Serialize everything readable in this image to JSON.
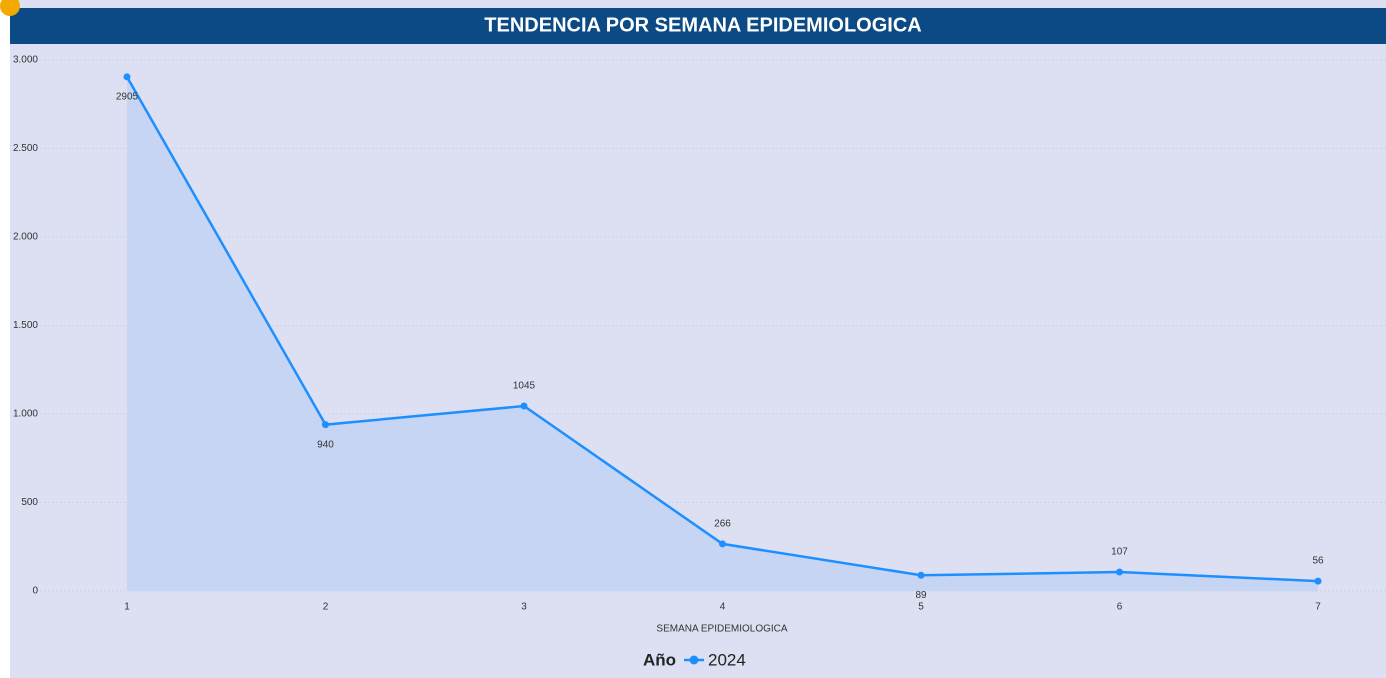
{
  "chart_data": {
    "type": "line",
    "title": "TENDENCIA POR SEMANA EPIDEMIOLOGICA",
    "x_label": "SEMANA EPIDEMIOLOGICA",
    "legend_title": "Año",
    "categories": [
      "1",
      "2",
      "3",
      "4",
      "5",
      "6",
      "7"
    ],
    "series": [
      {
        "name": "2024",
        "color": "#1e8fff",
        "values": [
          2905,
          940,
          1045,
          266,
          89,
          107,
          56
        ]
      }
    ],
    "area_color": "#c6d5f3",
    "ylim": [
      0,
      3000
    ],
    "yticks": [
      0,
      500,
      {
        "value": 1000,
        "label": "1.000"
      },
      {
        "value": 1500,
        "label": "1.500"
      },
      {
        "value": 2000,
        "label": "2.000"
      },
      {
        "value": 2500,
        "label": "2.500"
      },
      {
        "value": 3000,
        "label": "3.000"
      }
    ],
    "grid": true,
    "legend": "bottom"
  }
}
